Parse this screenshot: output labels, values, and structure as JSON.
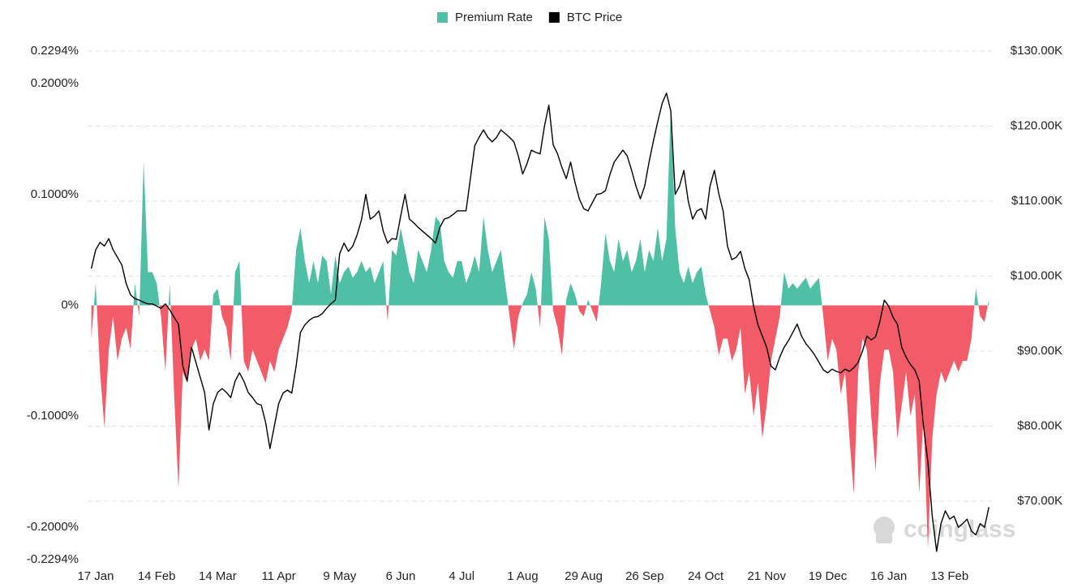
{
  "chart_data": {
    "type": "area-line",
    "legend_position": "top",
    "watermark": "coinglass",
    "categories": [
      null,
      "17 Jan",
      null,
      null,
      null,
      null,
      null,
      null,
      null,
      null,
      null,
      null,
      null,
      null,
      null,
      "14 Feb",
      null,
      null,
      null,
      null,
      null,
      null,
      null,
      null,
      null,
      null,
      null,
      null,
      null,
      "14 Mar",
      null,
      null,
      null,
      null,
      null,
      null,
      null,
      null,
      null,
      null,
      null,
      null,
      null,
      "11 Apr",
      null,
      null,
      null,
      null,
      null,
      null,
      null,
      null,
      null,
      null,
      null,
      null,
      null,
      "9 May",
      null,
      null,
      null,
      null,
      null,
      null,
      null,
      null,
      null,
      null,
      null,
      null,
      null,
      "6 Jun",
      null,
      null,
      null,
      null,
      null,
      null,
      null,
      null,
      null,
      null,
      null,
      null,
      null,
      "4 Jul",
      null,
      null,
      null,
      null,
      null,
      null,
      null,
      null,
      null,
      null,
      null,
      null,
      null,
      "1 Aug",
      null,
      null,
      null,
      null,
      null,
      null,
      null,
      null,
      null,
      null,
      null,
      null,
      null,
      "29 Aug",
      null,
      null,
      null,
      null,
      null,
      null,
      null,
      null,
      null,
      null,
      null,
      null,
      null,
      "26 Sep",
      null,
      null,
      null,
      null,
      null,
      null,
      null,
      null,
      null,
      null,
      null,
      null,
      null,
      "24 Oct",
      null,
      null,
      null,
      null,
      null,
      null,
      null,
      null,
      null,
      null,
      null,
      null,
      null,
      "21 Nov",
      null,
      null,
      null,
      null,
      null,
      null,
      null,
      null,
      null,
      null,
      null,
      null,
      null,
      "19 Dec",
      null,
      null,
      null,
      null,
      null,
      null,
      null,
      null,
      null,
      null,
      null,
      null,
      null,
      "16 Jan",
      null,
      null,
      null,
      null,
      null,
      null,
      null,
      null,
      null,
      null,
      null,
      null,
      null,
      "13 Feb",
      null,
      null,
      null,
      null,
      null,
      null,
      null,
      null,
      null
    ],
    "series": [
      {
        "name": "Premium Rate",
        "type": "area",
        "color": "#4fbfa5",
        "negative_color": "#f25c69",
        "values": [
          -0.03,
          0.02,
          -0.06,
          -0.11,
          -0.04,
          -0.01,
          -0.05,
          -0.03,
          -0.02,
          -0.04,
          0.02,
          -0.01,
          0.13,
          0.03,
          0.03,
          0.02,
          -0.01,
          -0.06,
          0.02,
          -0.08,
          -0.165,
          -0.06,
          -0.07,
          -0.04,
          -0.03,
          -0.05,
          -0.04,
          -0.05,
          0.01,
          0.015,
          -0.01,
          -0.02,
          -0.05,
          0.03,
          0.04,
          -0.05,
          -0.06,
          -0.04,
          -0.05,
          -0.06,
          -0.07,
          -0.05,
          -0.06,
          -0.04,
          -0.03,
          -0.02,
          -0.005,
          0.05,
          0.07,
          0.04,
          0.02,
          0.04,
          0.02,
          0.045,
          0.04,
          0.01,
          0.045,
          0.02,
          0.03,
          0.035,
          0.025,
          0.03,
          0.04,
          0.03,
          0.035,
          0.02,
          0.03,
          0.04,
          -0.015,
          0.05,
          0.045,
          0.07,
          0.05,
          0.03,
          0.02,
          0.05,
          0.04,
          0.03,
          0.05,
          0.08,
          0.075,
          0.04,
          0.03,
          0.025,
          0.04,
          0.04,
          0.02,
          0.03,
          0.045,
          0.03,
          0.08,
          0.05,
          0.03,
          0.04,
          0.05,
          0.02,
          -0.01,
          -0.04,
          -0.01,
          0.002,
          0.01,
          0.03,
          0.015,
          -0.02,
          0.08,
          0.06,
          -0.005,
          -0.02,
          -0.045,
          0.005,
          0.02,
          0.01,
          -0.005,
          -0.01,
          0.005,
          -0.005,
          -0.015,
          0.02,
          0.065,
          0.04,
          0.03,
          0.06,
          0.04,
          0.05,
          0.03,
          0.04,
          0.06,
          0.03,
          0.05,
          0.04,
          0.07,
          0.04,
          0.06,
          0.18,
          0.07,
          0.03,
          0.02,
          0.035,
          0.02,
          0.03,
          0.035,
          0.01,
          -0.005,
          -0.02,
          -0.045,
          -0.03,
          -0.03,
          -0.05,
          -0.04,
          -0.02,
          -0.08,
          -0.06,
          -0.1,
          -0.07,
          -0.12,
          -0.09,
          -0.05,
          -0.03,
          -0.01,
          0.03,
          0.015,
          0.02,
          0.015,
          0.02,
          0.025,
          0.015,
          0.02,
          0.025,
          -0.01,
          -0.05,
          -0.03,
          -0.04,
          -0.08,
          -0.06,
          -0.12,
          -0.17,
          -0.06,
          -0.03,
          -0.04,
          -0.1,
          -0.15,
          -0.07,
          -0.04,
          -0.04,
          -0.06,
          -0.12,
          -0.09,
          -0.06,
          -0.1,
          -0.08,
          -0.17,
          -0.1,
          -0.22,
          -0.12,
          -0.08,
          -0.06,
          -0.07,
          -0.06,
          -0.05,
          -0.06,
          -0.05,
          -0.05,
          -0.03,
          0.015,
          -0.01,
          -0.015,
          0.005
        ]
      },
      {
        "name": "BTC Price",
        "type": "line",
        "axis": "y2",
        "color": "#000000",
        "values": [
          101000,
          103500,
          104500,
          104000,
          105000,
          103500,
          102500,
          101500,
          99000,
          97500,
          97000,
          96800,
          96500,
          96300,
          96300,
          96000,
          95700,
          96300,
          95500,
          94500,
          93600,
          88000,
          86000,
          90500,
          88500,
          86500,
          84500,
          79500,
          83000,
          84500,
          85000,
          84500,
          83800,
          86000,
          87100,
          86000,
          84500,
          83800,
          83000,
          82800,
          80500,
          77000,
          80000,
          83000,
          84400,
          84800,
          84400,
          88000,
          92500,
          93500,
          94100,
          94500,
          94600,
          95000,
          95700,
          96300,
          96800,
          103000,
          104400,
          103300,
          104000,
          105500,
          107500,
          110900,
          107600,
          108000,
          108700,
          106000,
          104400,
          105000,
          104900,
          108000,
          110900,
          107600,
          107100,
          106500,
          106000,
          105500,
          105000,
          104400,
          106500,
          107600,
          107800,
          108200,
          108700,
          108700,
          108700,
          113000,
          117400,
          118500,
          119500,
          118500,
          117900,
          118500,
          119500,
          119000,
          118500,
          117900,
          116000,
          113600,
          115000,
          116800,
          116500,
          116300,
          120000,
          122800,
          117500,
          116300,
          114500,
          113000,
          115200,
          112500,
          110300,
          109000,
          108700,
          109800,
          110900,
          111000,
          111400,
          113500,
          115200,
          116000,
          116800,
          116000,
          114100,
          112000,
          110300,
          112000,
          115200,
          118000,
          120600,
          123000,
          124400,
          122000,
          110900,
          112000,
          114100,
          110000,
          107600,
          108700,
          109000,
          107600,
          112000,
          114100,
          111000,
          108700,
          104000,
          102200,
          102500,
          103300,
          101000,
          99500,
          96000,
          93500,
          92000,
          90500,
          88000,
          87500,
          89200,
          90500,
          91400,
          92500,
          93600,
          92000,
          91000,
          90300,
          89500,
          88500,
          87500,
          87100,
          87600,
          87300,
          87100,
          87600,
          87300,
          87800,
          88500,
          90000,
          92000,
          91500,
          91900,
          94000,
          96800,
          96000,
          94500,
          93600,
          90500,
          89200,
          88200,
          87500,
          86000,
          80000,
          75200,
          68000,
          63300,
          67000,
          68700,
          67600,
          68000,
          66500,
          67000,
          67600,
          66000,
          65500,
          67000,
          66500,
          69200
        ]
      }
    ],
    "ylim": [
      -0.2294,
      0.2294
    ],
    "yticks": [
      {
        "value": 0.2294,
        "label": "0.2294%"
      },
      {
        "value": 0.2,
        "label": "0.2000%"
      },
      {
        "value": 0.1,
        "label": "0.1000%"
      },
      {
        "value": 0,
        "label": "0%"
      },
      {
        "value": -0.1,
        "label": "-0.1000%"
      },
      {
        "value": -0.2,
        "label": "-0.2000%"
      },
      {
        "value": -0.2294,
        "label": "-0.2294%"
      }
    ],
    "y2lim": [
      62200,
      130000
    ],
    "y2ticks": [
      {
        "value": 130000,
        "label": "$130.00K"
      },
      {
        "value": 120000,
        "label": "$120.00K"
      },
      {
        "value": 110000,
        "label": "$110.00K"
      },
      {
        "value": 100000,
        "label": "$100.00K"
      },
      {
        "value": 90000,
        "label": "$90.00K"
      },
      {
        "value": 80000,
        "label": "$80.00K"
      },
      {
        "value": 70000,
        "label": "$70.00K"
      }
    ],
    "grid": true
  }
}
